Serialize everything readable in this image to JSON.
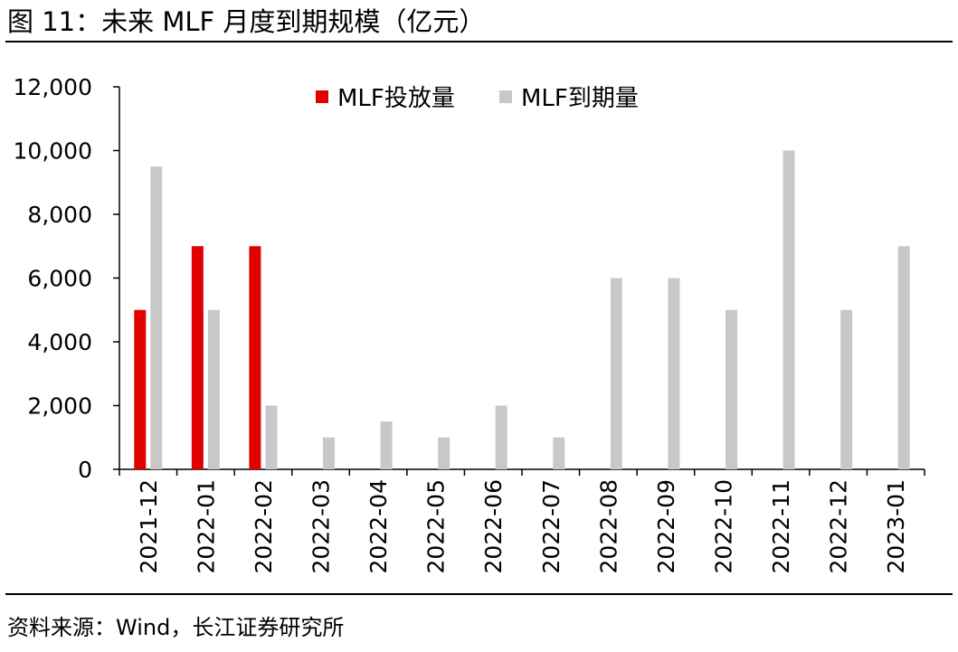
{
  "header": {
    "title": "图 11：未来 MLF 月度到期规模（亿元）"
  },
  "footer": {
    "source": "资料来源：Wind，长江证券研究所"
  },
  "chart_data": {
    "type": "bar",
    "title": "未来 MLF 月度到期规模（亿元）",
    "xlabel": "",
    "ylabel": "",
    "ylim": [
      0,
      12000
    ],
    "yticks": [
      0,
      2000,
      4000,
      6000,
      8000,
      10000,
      12000
    ],
    "ytick_labels": [
      "0",
      "2,000",
      "4,000",
      "6,000",
      "8,000",
      "10,000",
      "12,000"
    ],
    "grid": false,
    "legend_position": "top-center",
    "categories": [
      "2021-12",
      "2022-01",
      "2022-02",
      "2022-03",
      "2022-04",
      "2022-05",
      "2022-06",
      "2022-07",
      "2022-08",
      "2022-09",
      "2022-10",
      "2022-11",
      "2022-12",
      "2023-01"
    ],
    "series": [
      {
        "name": "MLF投放量",
        "color": "#e00000",
        "values": [
          5000,
          7000,
          7000,
          null,
          null,
          null,
          null,
          null,
          null,
          null,
          null,
          null,
          null,
          null
        ]
      },
      {
        "name": "MLF到期量",
        "color": "#c8c8c8",
        "values": [
          9500,
          5000,
          2000,
          1000,
          1500,
          1000,
          2000,
          1000,
          6000,
          6000,
          5000,
          10000,
          5000,
          7000
        ]
      }
    ]
  }
}
